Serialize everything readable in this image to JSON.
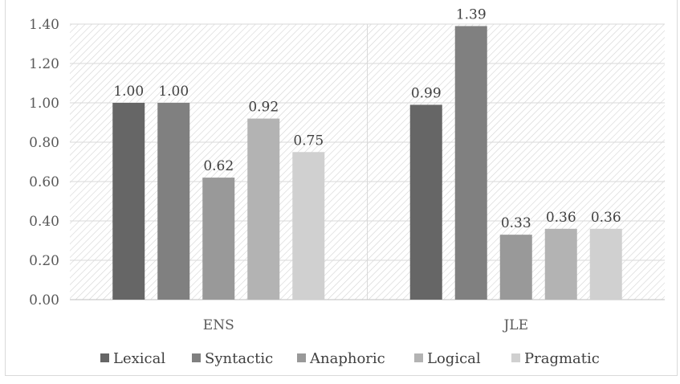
{
  "chart_data": {
    "type": "bar",
    "categories": [
      "ENS",
      "JLE"
    ],
    "series": [
      {
        "name": "Lexical",
        "values": [
          1.0,
          0.99
        ],
        "labels": [
          "1.00",
          "0.99"
        ],
        "color": "#666666"
      },
      {
        "name": "Syntactic",
        "values": [
          1.0,
          1.39
        ],
        "labels": [
          "1.00",
          "1.39"
        ],
        "color": "#808080"
      },
      {
        "name": "Anaphoric",
        "values": [
          0.62,
          0.33
        ],
        "labels": [
          "0.62",
          "0.33"
        ],
        "color": "#999999"
      },
      {
        "name": "Logical",
        "values": [
          0.92,
          0.36
        ],
        "labels": [
          "0.92",
          "0.36"
        ],
        "color": "#b3b3b3"
      },
      {
        "name": "Pragmatic",
        "values": [
          0.75,
          0.36
        ],
        "labels": [
          "0.75",
          "0.36"
        ],
        "color": "#d0d0d0"
      }
    ],
    "ylim": [
      0,
      1.4
    ],
    "yticks": [
      "0.00",
      "0.20",
      "0.40",
      "0.60",
      "0.80",
      "1.00",
      "1.20",
      "1.40"
    ],
    "grid": true,
    "legend": "bottom",
    "title": "",
    "xlabel": "",
    "ylabel": ""
  }
}
